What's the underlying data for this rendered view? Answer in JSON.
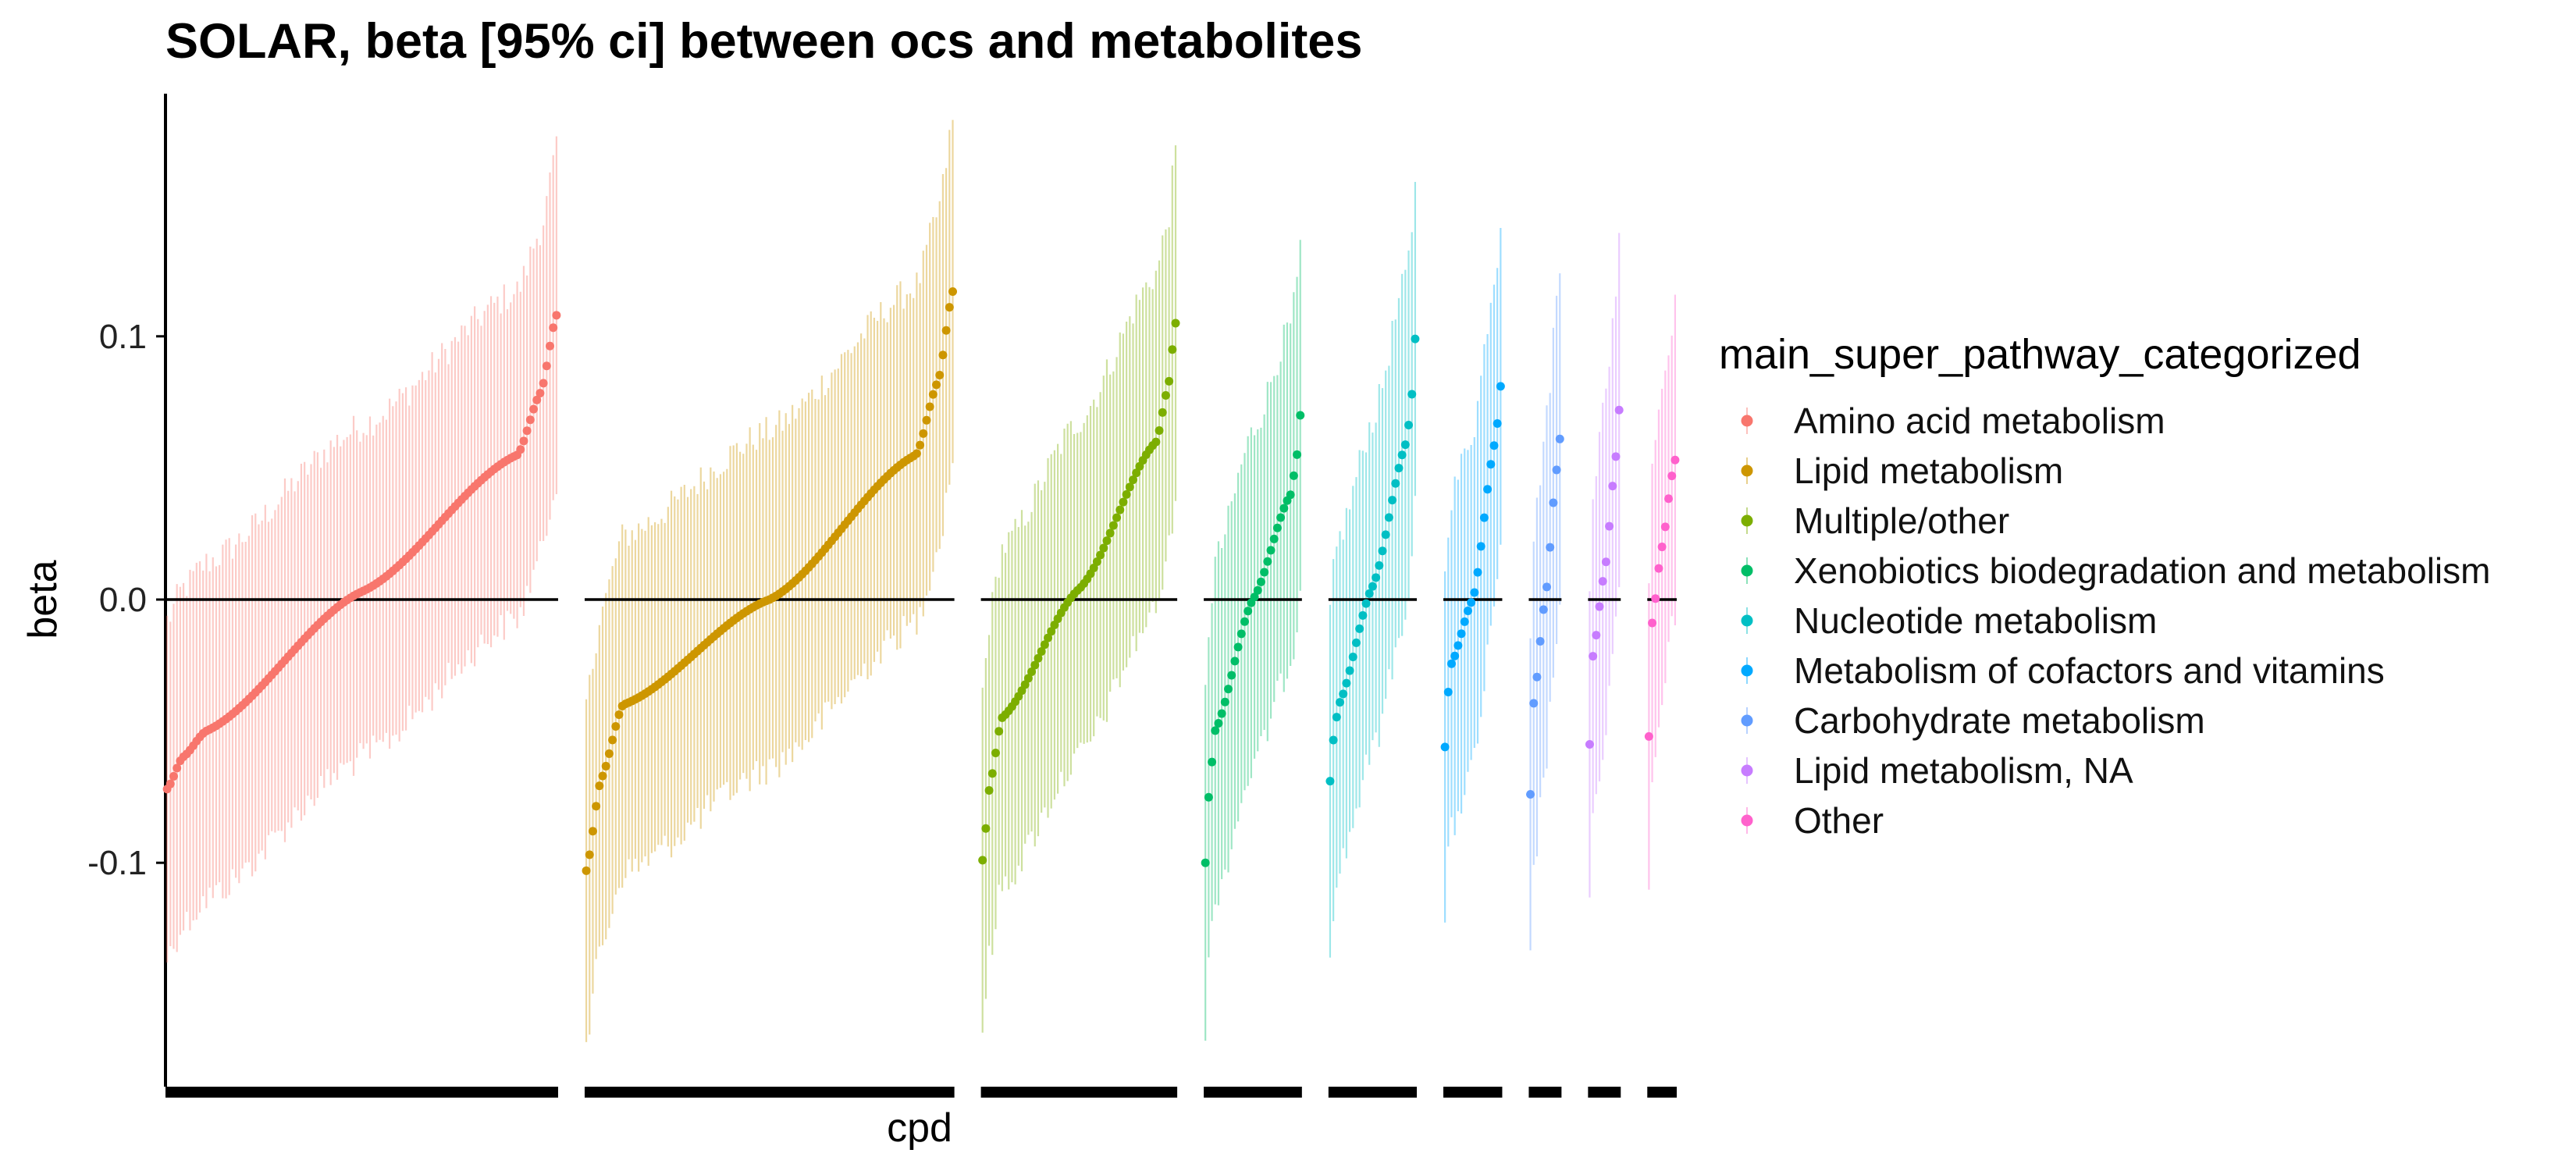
{
  "chart_data": {
    "type": "scatter",
    "title": "SOLAR, beta [95% ci] between ocs and metabolites",
    "xlabel": "cpd",
    "ylabel": "beta",
    "y_ticks": [
      "0.1",
      "0.0",
      "-0.1"
    ],
    "ylim": [
      -0.185,
      0.19
    ],
    "reference_line_y": 0,
    "grid": false,
    "legend": {
      "title": "main_super_pathway_categorized",
      "placement": "right"
    },
    "series": [
      {
        "name": "Amino acid metabolism",
        "color": "#F8766D",
        "n_compounds": 120,
        "beta": {
          "min": -0.072,
          "q10": -0.05,
          "median": 0.003,
          "q90": 0.055,
          "max": 0.108
        },
        "ci_half_width": {
          "start": 0.064,
          "end": 0.062
        }
      },
      {
        "name": "Lipid metabolism",
        "color": "#CD9600",
        "n_compounds": 113,
        "beta": {
          "min": -0.103,
          "q10": -0.04,
          "median": 0.0,
          "q90": 0.055,
          "max": 0.117
        },
        "ci_half_width": {
          "start": 0.064,
          "end": 0.064
        }
      },
      {
        "name": "Multiple/other",
        "color": "#7CAE00",
        "n_compounds": 60,
        "beta": {
          "min": -0.099,
          "q10": -0.045,
          "median": 0.004,
          "q90": 0.06,
          "max": 0.105
        },
        "ci_half_width": {
          "start": 0.064,
          "end": 0.064
        }
      },
      {
        "name": "Xenobiotics biodegradation and metabolism",
        "color": "#00BE67",
        "n_compounds": 30,
        "beta": {
          "min": -0.1,
          "q10": -0.05,
          "median": 0.0,
          "q90": 0.04,
          "max": 0.07
        },
        "ci_half_width": {
          "start": 0.064,
          "end": 0.064
        }
      },
      {
        "name": "Nucleotide metabolism",
        "color": "#00BFC4",
        "n_compounds": 27,
        "beta": {
          "min": -0.069,
          "q10": -0.04,
          "median": 0.005,
          "q90": 0.06,
          "max": 0.099
        },
        "ci_half_width": {
          "start": 0.063,
          "end": 0.063
        }
      },
      {
        "name": "Metabolism of cofactors and vitamins",
        "color": "#00A9FF",
        "n_compounds": 18,
        "beta": {
          "min": -0.056,
          "q10": -0.025,
          "median": 0.0,
          "q90": 0.06,
          "max": 0.081
        },
        "ci_half_width": {
          "start": 0.064,
          "end": 0.064
        }
      },
      {
        "name": "Carbohydrate metabolism",
        "color": "#619CFF",
        "n_compounds": 10,
        "beta": {
          "min": -0.074,
          "q10": -0.04,
          "median": 0.0,
          "q90": 0.05,
          "max": 0.061
        },
        "ci_half_width": {
          "start": 0.064,
          "end": 0.064
        }
      },
      {
        "name": "Lipid metabolism, NA",
        "color": "#C77CFF",
        "n_compounds": 10,
        "beta": {
          "min": -0.055,
          "q10": -0.022,
          "median": 0.01,
          "q90": 0.055,
          "max": 0.072
        },
        "ci_half_width": {
          "start": 0.064,
          "end": 0.064
        }
      },
      {
        "name": "Other",
        "color": "#FF61CC",
        "n_compounds": 9,
        "beta": {
          "min": -0.052,
          "q10": -0.01,
          "median": 0.02,
          "q90": 0.048,
          "max": 0.053
        },
        "ci_half_width": {
          "start": 0.064,
          "end": 0.058
        }
      }
    ]
  }
}
